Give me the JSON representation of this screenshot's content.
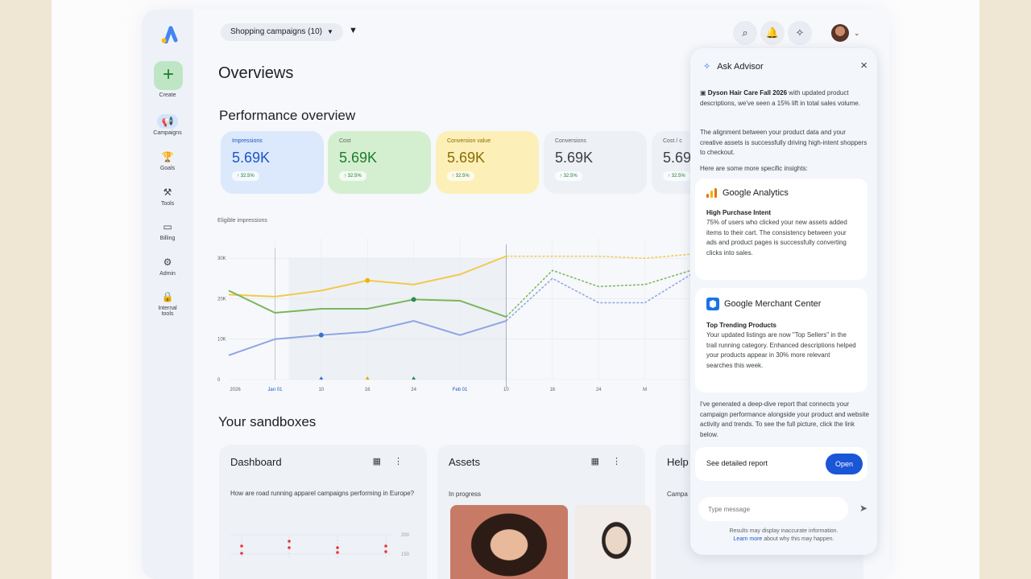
{
  "sidebar": {
    "create": "Create",
    "items": [
      {
        "label": "Campaigns",
        "icon": "megaphone-icon"
      },
      {
        "label": "Goals",
        "icon": "trophy-icon"
      },
      {
        "label": "Tools",
        "icon": "tools-icon"
      },
      {
        "label": "Billing",
        "icon": "card-icon"
      },
      {
        "label": "Admin",
        "icon": "gear-icon"
      },
      {
        "label": "Internal",
        "label2": "tools",
        "icon": "lock-icon"
      }
    ]
  },
  "topbar": {
    "filter_label": "Shopping campaigns (10)"
  },
  "page_title": "Overviews",
  "performance": {
    "title": "Performance overview",
    "cards": [
      {
        "label": "Impressions",
        "value": "5.69K",
        "change": "↑ 32.5%",
        "color": "#dce8fb"
      },
      {
        "label": "Cost",
        "value": "5.69K",
        "change": "↑ 32.5%",
        "color": "#d4efcf"
      },
      {
        "label": "Conversion value",
        "value": "5.69K",
        "change": "↑ 32.5%",
        "color": "#fcefb8"
      },
      {
        "label": "Conversions",
        "value": "5.69K",
        "change": "↑ 32.5%",
        "color": "#edf0f5"
      },
      {
        "label": "Cost / c",
        "value": "5.69",
        "change": "↑ 32.5%",
        "color": "#edf0f5"
      }
    ]
  },
  "chart_data": {
    "type": "line",
    "ylabel": "Eligible impressions",
    "y_ticks": [
      "30K",
      "20K",
      "10K",
      "0"
    ],
    "ylim": [
      0,
      35
    ],
    "x_ticks": [
      "2026",
      "Jan 01",
      "10",
      "16",
      "24",
      "Feb 01",
      "10",
      "16",
      "24",
      "M"
    ],
    "x": [
      0,
      1,
      2,
      3,
      4,
      5,
      6,
      7,
      8,
      9,
      10
    ],
    "divider_x": 6,
    "series": [
      {
        "color": "#f2c94c",
        "values": [
          21,
          20.5,
          22,
          24.5,
          23.5,
          26,
          30.5,
          30.5,
          30.5,
          30,
          31
        ]
      },
      {
        "color": "#7cb55a",
        "values": [
          22,
          16.5,
          17.5,
          17.5,
          19.8,
          19.5,
          15.5,
          27,
          23,
          23.5,
          27
        ]
      },
      {
        "color": "#8fa4e3",
        "values": [
          6,
          10,
          11,
          11.8,
          14.5,
          11,
          14.5,
          25,
          19,
          19,
          26
        ]
      }
    ],
    "markers": [
      {
        "x": 2,
        "color": "#3b6fd1"
      },
      {
        "x": 3,
        "color": "#e0a800"
      },
      {
        "x": 4,
        "color": "#2e8b57"
      }
    ]
  },
  "sandboxes": {
    "title": "Your sandboxes",
    "cards": [
      {
        "title": "Dashboard",
        "question": "How are road running apparel campaigns performing in Europe?",
        "axis": [
          "200",
          "150"
        ]
      },
      {
        "title": "Assets",
        "status": "In progress"
      },
      {
        "title": "Help",
        "sub": "Campa"
      }
    ]
  },
  "advisor": {
    "title": "Ask Advisor",
    "intro_bold": "Dyson Hair Care Fall 2026",
    "intro": " with updated product descriptions, we've seen a 15% lift in total sales volume.",
    "para2": "The alignment between your product data and your creative assets is successfully driving high-intent shoppers to checkout.",
    "para3": "Here are some more specific insights:",
    "insights": [
      {
        "source": "Google Analytics",
        "heading": "High Purchase Intent",
        "body": "75% of users who clicked your new assets added items to their cart. The consistency between your ads and product pages is successfully converting clicks into sales."
      },
      {
        "source": "Google Merchant Center",
        "heading": "Top Trending Products",
        "body": "Your updated listings are now \"Top Sellers\" in the trail running category. Enhanced descriptions helped your products appear in 30% more relevant searches this week."
      }
    ],
    "summary": "I've generated a deep-dive report that connects your campaign performance alongside your product and website activity and trends. To see the full picture, click the link below.",
    "report_label": "See detailed report",
    "open_label": "Open",
    "input_placeholder": "Type message",
    "disclaimer": "Results may display inaccurate information.",
    "learn_more": "Learn more",
    "learn_more_rest": " about why this may happen."
  }
}
